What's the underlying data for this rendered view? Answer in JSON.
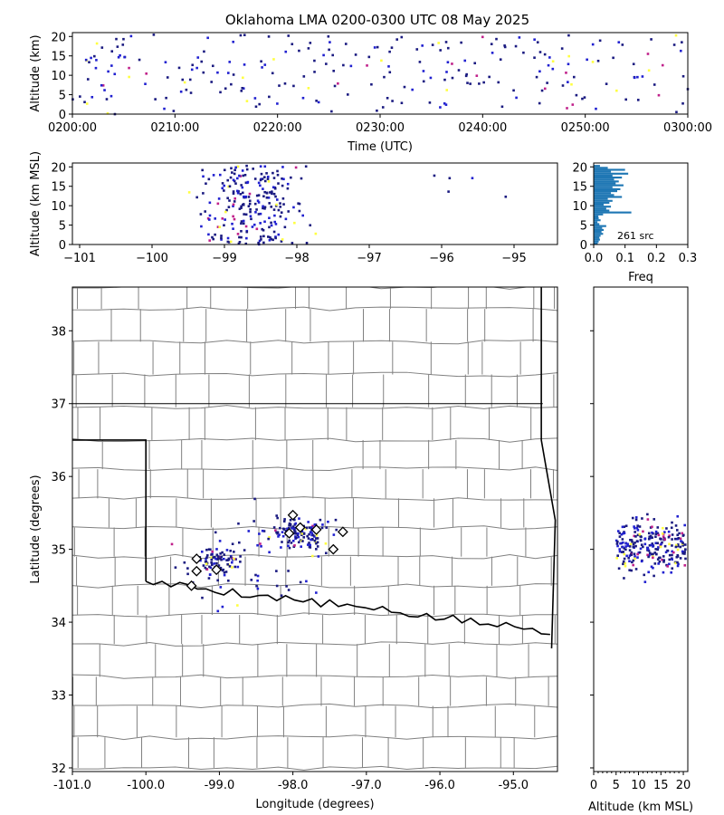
{
  "title": "Oklahoma LMA 0200-0300 UTC 08 May 2025",
  "colors": {
    "source_dark": "#1a1a80",
    "source_blue": "#2020d0",
    "source_magenta": "#c0208a",
    "source_yellow": "#ffff40",
    "histogram": "#1f77b4",
    "county_border": "#808080",
    "state_border": "#000000",
    "station_marker": "#000000"
  },
  "chart_data": [
    {
      "name": "time-height",
      "type": "scatter",
      "xlabel": "Time (UTC)",
      "ylabel": "Altitude (km)",
      "xlim": [
        "0200:00",
        "0300:00"
      ],
      "ylim": [
        0,
        21
      ],
      "xticks": [
        "0200:00",
        "0210:00",
        "0220:00",
        "0230:00",
        "0240:00",
        "0250:00",
        "0300:00"
      ],
      "yticks": [
        "0",
        "5",
        "10",
        "15",
        "20"
      ],
      "grid": false
    },
    {
      "name": "lon-height",
      "type": "scatter",
      "xlabel": "",
      "ylabel": "Altitude (km MSL)",
      "xlim": [
        -101.1,
        -94.4
      ],
      "ylim": [
        0,
        21
      ],
      "xticks": [
        "−101",
        "−100",
        "−99",
        "−98",
        "−97",
        "−96",
        "−95"
      ],
      "yticks": [
        "0",
        "5",
        "10",
        "15",
        "20"
      ],
      "grid": false
    },
    {
      "name": "altitude-histogram",
      "type": "bar",
      "xlabel": "Freq",
      "xlim": [
        0,
        0.3
      ],
      "ylim": [
        0,
        21
      ],
      "xticks": [
        "0.0",
        "0.1",
        "0.2",
        "0.3"
      ],
      "yticks": [
        "0",
        "5",
        "10",
        "15",
        "20"
      ],
      "annotation": "261 src",
      "bins": [
        {
          "alt": 0.25,
          "freq": 0.013
        },
        {
          "alt": 0.75,
          "freq": 0.016
        },
        {
          "alt": 1.25,
          "freq": 0.02
        },
        {
          "alt": 1.75,
          "freq": 0.018
        },
        {
          "alt": 2.25,
          "freq": 0.022
        },
        {
          "alt": 2.75,
          "freq": 0.03
        },
        {
          "alt": 3.25,
          "freq": 0.025
        },
        {
          "alt": 3.75,
          "freq": 0.032
        },
        {
          "alt": 4.25,
          "freq": 0.027
        },
        {
          "alt": 4.75,
          "freq": 0.04
        },
        {
          "alt": 5.25,
          "freq": 0.018
        },
        {
          "alt": 5.75,
          "freq": 0.012
        },
        {
          "alt": 6.25,
          "freq": 0.022
        },
        {
          "alt": 6.75,
          "freq": 0.016
        },
        {
          "alt": 7.25,
          "freq": 0.015
        },
        {
          "alt": 7.75,
          "freq": 0.03
        },
        {
          "alt": 8.25,
          "freq": 0.12
        },
        {
          "alt": 8.75,
          "freq": 0.05
        },
        {
          "alt": 9.25,
          "freq": 0.04
        },
        {
          "alt": 9.75,
          "freq": 0.055
        },
        {
          "alt": 10.25,
          "freq": 0.032
        },
        {
          "alt": 10.75,
          "freq": 0.05
        },
        {
          "alt": 11.25,
          "freq": 0.06
        },
        {
          "alt": 11.75,
          "freq": 0.045
        },
        {
          "alt": 12.25,
          "freq": 0.09
        },
        {
          "alt": 12.75,
          "freq": 0.065
        },
        {
          "alt": 13.25,
          "freq": 0.055
        },
        {
          "alt": 13.75,
          "freq": 0.075
        },
        {
          "alt": 14.25,
          "freq": 0.085
        },
        {
          "alt": 14.75,
          "freq": 0.06
        },
        {
          "alt": 15.25,
          "freq": 0.095
        },
        {
          "alt": 15.75,
          "freq": 0.07
        },
        {
          "alt": 16.25,
          "freq": 0.08
        },
        {
          "alt": 16.75,
          "freq": 0.065
        },
        {
          "alt": 17.25,
          "freq": 0.09
        },
        {
          "alt": 17.75,
          "freq": 0.06
        },
        {
          "alt": 18.25,
          "freq": 0.11
        },
        {
          "alt": 18.75,
          "freq": 0.055
        },
        {
          "alt": 19.25,
          "freq": 0.1
        },
        {
          "alt": 19.75,
          "freq": 0.045
        },
        {
          "alt": 20.25,
          "freq": 0.02
        }
      ]
    },
    {
      "name": "plan-view",
      "type": "scatter",
      "xlabel": "Longitude (degrees)",
      "ylabel": "Latitude (degrees)",
      "xlim": [
        -101.0,
        -94.4
      ],
      "ylim": [
        31.95,
        38.6
      ],
      "xticks": [
        "-101.0",
        "-100.0",
        "-99.0",
        "-98.0",
        "-97.0",
        "-96.0",
        "-95.0"
      ],
      "yticks": [
        "32",
        "33",
        "34",
        "35",
        "36",
        "37",
        "38"
      ],
      "stations": [
        {
          "lon": -98.0,
          "lat": 35.47
        },
        {
          "lon": -97.9,
          "lat": 35.3
        },
        {
          "lon": -98.05,
          "lat": 35.22
        },
        {
          "lon": -97.68,
          "lat": 35.27
        },
        {
          "lon": -97.32,
          "lat": 35.24
        },
        {
          "lon": -97.45,
          "lat": 35.0
        },
        {
          "lon": -99.31,
          "lat": 34.87
        },
        {
          "lon": -99.31,
          "lat": 34.7
        },
        {
          "lon": -99.04,
          "lat": 34.72
        },
        {
          "lon": -99.38,
          "lat": 34.5
        }
      ]
    },
    {
      "name": "altitude-latitude",
      "type": "scatter",
      "xlabel": "Altitude (km MSL)",
      "xlim": [
        0,
        21
      ],
      "ylim": [
        31.95,
        38.6
      ],
      "xticks": [
        "0",
        "5",
        "10",
        "15",
        "20"
      ]
    }
  ]
}
